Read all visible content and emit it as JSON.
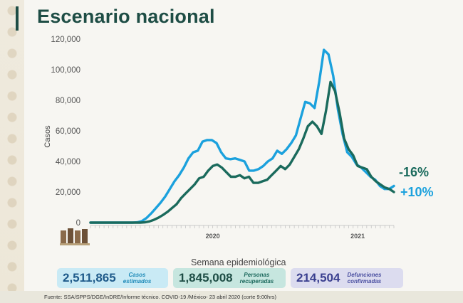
{
  "title": "Escenario nacional",
  "ylabel": "Casos",
  "xlabel": "Semana epidemiológica",
  "annotations": {
    "down": "-16%",
    "up": "+10%"
  },
  "colors": {
    "light": "#1ba1dd",
    "dark": "#1a6a5c",
    "title": "#1e4d45"
  },
  "stats": [
    {
      "value": "2,511,865",
      "label_1": "Casos",
      "label_2": "estimados"
    },
    {
      "value": "1,845,008",
      "label_1": "Personas",
      "label_2": "recuperadas"
    },
    {
      "value": "214,504",
      "label_1": "Defunciones",
      "label_2": "confirmadas"
    }
  ],
  "source": "Fuente: SSA/SPPS/DGE/InDRE/Informe técnico. COVID-19 /México- 23 abril 2020 (corte 9:00hrs)",
  "chart_data": {
    "type": "line",
    "xlabel": "Semana epidemiológica",
    "ylabel": "Casos",
    "ylim": [
      0,
      120000
    ],
    "yticks": [
      0,
      20000,
      40000,
      60000,
      80000,
      100000,
      120000
    ],
    "ytick_labels": [
      "0",
      "20,000",
      "40,000",
      "60,000",
      "80,000",
      "100,000",
      "120,000"
    ],
    "x_start_week": 1,
    "x_end_week": 68,
    "year_labels": [
      {
        "label": "2020",
        "week": 28
      },
      {
        "label": "2021",
        "week": 60
      }
    ],
    "grid": false,
    "series": [
      {
        "color": "#1ba1dd",
        "values": [
          0,
          0,
          0,
          0,
          0,
          0,
          0,
          0,
          0,
          0,
          200,
          1000,
          3000,
          6000,
          9500,
          13000,
          17000,
          22000,
          27000,
          31000,
          36000,
          42000,
          46000,
          47000,
          53000,
          54000,
          54000,
          52000,
          46000,
          42000,
          41500,
          42000,
          41000,
          40000,
          34000,
          34000,
          35000,
          37000,
          40000,
          42000,
          47000,
          45000,
          48000,
          52000,
          57000,
          68000,
          79000,
          78000,
          75000,
          92000,
          113000,
          110000,
          96000,
          74000,
          58000,
          46000,
          43000,
          38000,
          36000,
          33000,
          30000,
          28000,
          24000,
          22000,
          22000,
          24000
        ]
      },
      {
        "color": "#1a6a5c",
        "values": [
          0,
          0,
          0,
          0,
          0,
          0,
          0,
          0,
          0,
          0,
          0,
          0,
          200,
          800,
          1800,
          3200,
          5000,
          7000,
          9500,
          12000,
          16000,
          19000,
          22000,
          25000,
          29000,
          30000,
          34000,
          37000,
          38000,
          36000,
          33000,
          30000,
          30000,
          31000,
          29000,
          30000,
          26000,
          26000,
          27000,
          28000,
          31000,
          34000,
          37000,
          35000,
          38000,
          43000,
          48000,
          55000,
          63000,
          66000,
          63000,
          58000,
          73000,
          92000,
          86000,
          72000,
          55000,
          48000,
          44000,
          37000,
          36000,
          35000,
          30000,
          27000,
          25000,
          23000,
          22000,
          20000
        ]
      }
    ]
  }
}
